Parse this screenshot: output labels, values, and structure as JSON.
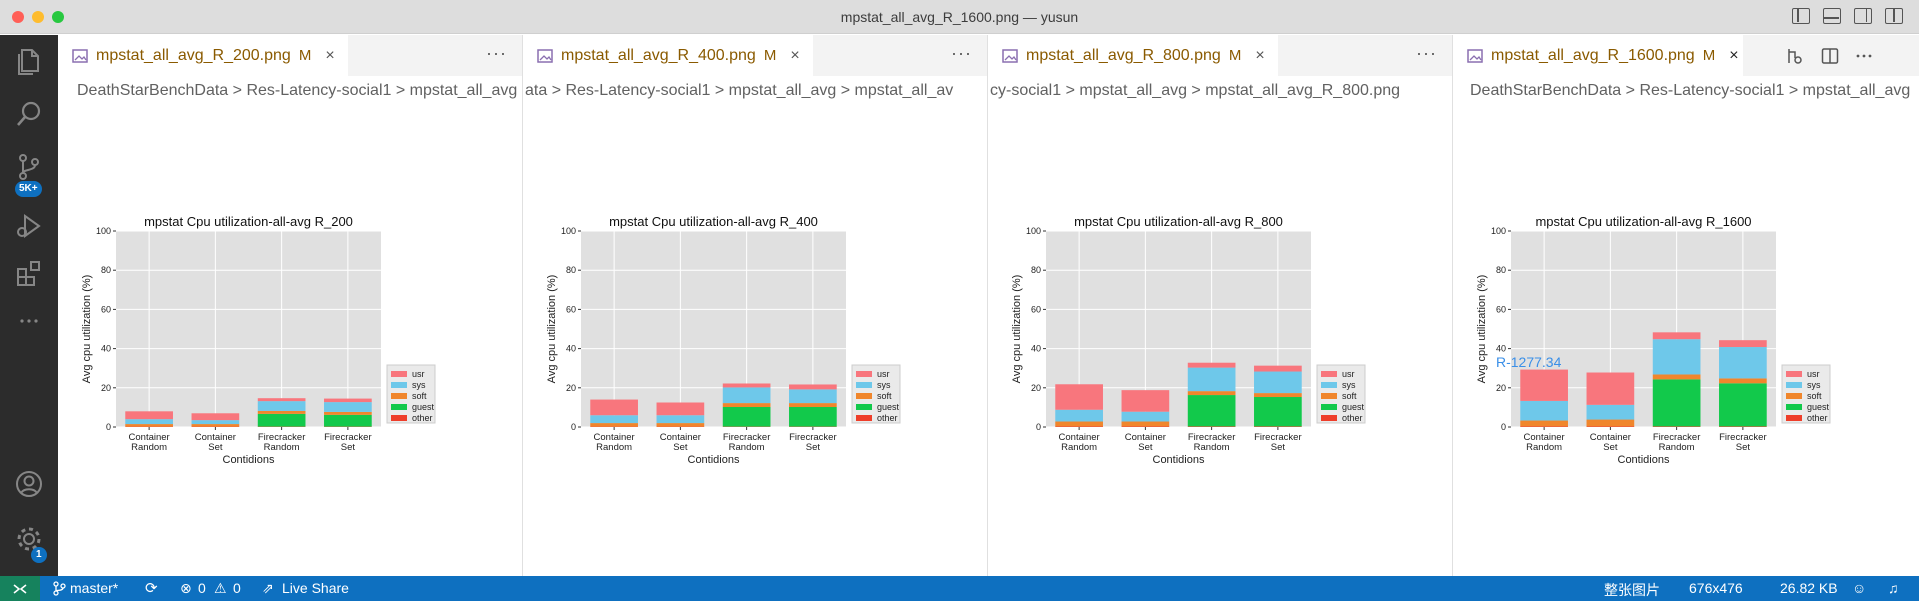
{
  "window": {
    "title": "mpstat_all_avg_R_1600.png — yusun"
  },
  "activity_bar": {
    "scm_badge": "5K+",
    "manage_badge": "1"
  },
  "colors": {
    "usr": "#f8767d",
    "sys": "#6ec8ea",
    "soft": "#f0862c",
    "guest": "#12c94b",
    "other": "#ee3e2a",
    "plot_bg": "#e0e0e0"
  },
  "panes": [
    {
      "tab": {
        "title": "mpstat_all_avg_R_200.png",
        "modified": "M",
        "close": "×",
        "more": "···"
      },
      "breadcrumb": "DeathStarBenchData  >  Res-Latency-social1  >  mpstat_all_avg"
    },
    {
      "tab": {
        "title": "mpstat_all_avg_R_400.png",
        "modified": "M",
        "close": "×",
        "more": "···"
      },
      "breadcrumb": "ata  >  Res-Latency-social1  >  mpstat_all_avg  >      mpstat_all_av"
    },
    {
      "tab": {
        "title": "mpstat_all_avg_R_800.png",
        "modified": "M",
        "close": "×",
        "more": "···"
      },
      "breadcrumb": "cy-social1  >  mpstat_all_avg  >      mpstat_all_avg_R_800.png"
    },
    {
      "tab": {
        "title": "mpstat_all_avg_R_1600.png",
        "modified": "M",
        "close": "×"
      },
      "breadcrumb": "DeathStarBenchData  >  Res-Latency-social1  >  mpstat_all_avg"
    }
  ],
  "chart_data": [
    {
      "type": "bar",
      "stacked": true,
      "title": "mpstat Cpu utilization-all-avg R_200",
      "xlabel": "Contidions",
      "ylabel": "Avg cpu utilization (%)",
      "ylim": [
        0,
        100
      ],
      "yticks": [
        0,
        20,
        40,
        60,
        80,
        100
      ],
      "legend": [
        "usr",
        "sys",
        "soft",
        "guest",
        "other"
      ],
      "legend_position": "center-right",
      "grid": true,
      "categories": [
        [
          "Container",
          "Random"
        ],
        [
          "Container",
          "Set"
        ],
        [
          "Firecracker",
          "Random"
        ],
        [
          "Firecracker",
          "Set"
        ]
      ],
      "series": [
        {
          "name": "other",
          "values": [
            0.2,
            0.2,
            0.2,
            0.2
          ]
        },
        {
          "name": "guest",
          "values": [
            0,
            0,
            6.5,
            6
          ]
        },
        {
          "name": "soft",
          "values": [
            1.3,
            1.3,
            1.5,
            1.5
          ]
        },
        {
          "name": "sys",
          "values": [
            2.5,
            2,
            5,
            5
          ]
        },
        {
          "name": "usr",
          "values": [
            4,
            3.5,
            1.5,
            1.8
          ]
        }
      ]
    },
    {
      "type": "bar",
      "stacked": true,
      "title": "mpstat Cpu utilization-all-avg R_400",
      "xlabel": "Contidions",
      "ylabel": "Avg cpu utilization (%)",
      "ylim": [
        0,
        100
      ],
      "yticks": [
        0,
        20,
        40,
        60,
        80,
        100
      ],
      "legend": [
        "usr",
        "sys",
        "soft",
        "guest",
        "other"
      ],
      "legend_position": "center-right",
      "grid": true,
      "categories": [
        [
          "Container",
          "Random"
        ],
        [
          "Container",
          "Set"
        ],
        [
          "Firecracker",
          "Random"
        ],
        [
          "Firecracker",
          "Set"
        ]
      ],
      "series": [
        {
          "name": "other",
          "values": [
            0.2,
            0.2,
            0.2,
            0.2
          ]
        },
        {
          "name": "guest",
          "values": [
            0,
            0,
            10,
            10
          ]
        },
        {
          "name": "soft",
          "values": [
            1.8,
            1.8,
            2,
            2
          ]
        },
        {
          "name": "sys",
          "values": [
            4,
            4,
            8,
            7
          ]
        },
        {
          "name": "usr",
          "values": [
            8,
            6.5,
            2,
            2.5
          ]
        }
      ]
    },
    {
      "type": "bar",
      "stacked": true,
      "title": "mpstat Cpu utilization-all-avg R_800",
      "xlabel": "Contidions",
      "ylabel": "Avg cpu utilization (%)",
      "ylim": [
        0,
        100
      ],
      "yticks": [
        0,
        20,
        40,
        60,
        80,
        100
      ],
      "legend": [
        "usr",
        "sys",
        "soft",
        "guest",
        "other"
      ],
      "legend_position": "center-right",
      "grid": true,
      "categories": [
        [
          "Container",
          "Random"
        ],
        [
          "Container",
          "Set"
        ],
        [
          "Firecracker",
          "Random"
        ],
        [
          "Firecracker",
          "Set"
        ]
      ],
      "series": [
        {
          "name": "other",
          "values": [
            0.3,
            0.3,
            0.3,
            0.3
          ]
        },
        {
          "name": "guest",
          "values": [
            0,
            0,
            16,
            15
          ]
        },
        {
          "name": "soft",
          "values": [
            2.5,
            2.5,
            2,
            2
          ]
        },
        {
          "name": "sys",
          "values": [
            6,
            5,
            12,
            11
          ]
        },
        {
          "name": "usr",
          "values": [
            13,
            11,
            2.5,
            3
          ]
        }
      ]
    },
    {
      "type": "bar",
      "stacked": true,
      "title": "mpstat Cpu utilization-all-avg R_1600",
      "xlabel": "Contidions",
      "ylabel": "Avg cpu utilization (%)",
      "ylim": [
        0,
        100
      ],
      "yticks": [
        0,
        20,
        40,
        60,
        80,
        100
      ],
      "legend": [
        "usr",
        "sys",
        "soft",
        "guest",
        "other"
      ],
      "legend_position": "center-right",
      "grid": true,
      "categories": [
        [
          "Container",
          "Random"
        ],
        [
          "Container",
          "Set"
        ],
        [
          "Firecracker",
          "Random"
        ],
        [
          "Firecracker",
          "Set"
        ]
      ],
      "series": [
        {
          "name": "other",
          "values": [
            0.3,
            0.3,
            0.3,
            0.3
          ]
        },
        {
          "name": "guest",
          "values": [
            0,
            0,
            24,
            22
          ]
        },
        {
          "name": "soft",
          "values": [
            3,
            3.5,
            2.5,
            2.5
          ]
        },
        {
          "name": "sys",
          "values": [
            10,
            7.5,
            18,
            16
          ]
        },
        {
          "name": "usr",
          "values": [
            16,
            16.5,
            3.5,
            3.5
          ]
        }
      ],
      "annotation": "R-1277.34"
    }
  ],
  "status": {
    "branch": "master*",
    "errors": "0",
    "warnings": "0",
    "liveshare": "Live Share",
    "view": "整张图片",
    "dimensions": "676x476",
    "filesize": "26.82 KB"
  }
}
